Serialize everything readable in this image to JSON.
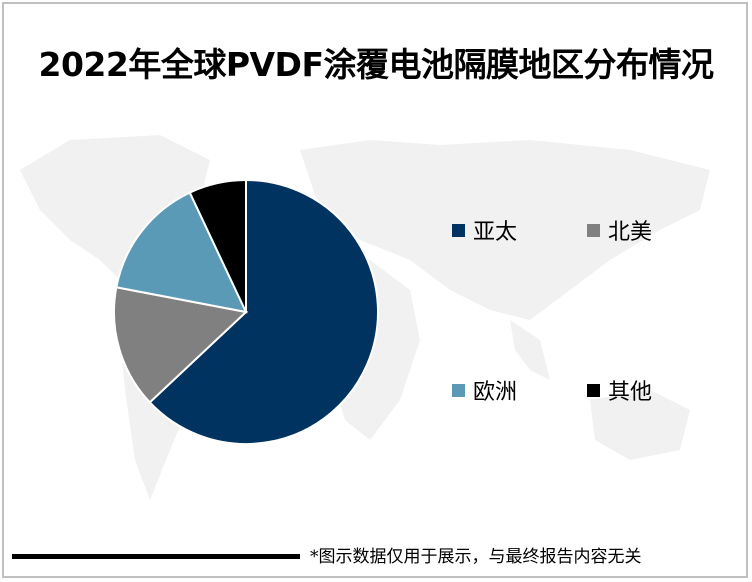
{
  "title": "2022年全球PVDF涂覆电池隔膜地区分布情况",
  "footer": {
    "note": "*图示数据仅用于展示，与最终报告内容无关"
  },
  "legend": [
    {
      "label": "亚太",
      "color": "#003360"
    },
    {
      "label": "北美",
      "color": "#808080"
    },
    {
      "label": "欧洲",
      "color": "#5a9ab7"
    },
    {
      "label": "其他",
      "color": "#000000"
    }
  ],
  "chart_data": {
    "type": "pie",
    "title": "2022年全球PVDF涂覆电池隔膜地区分布情况",
    "categories": [
      "亚太",
      "北美",
      "欧洲",
      "其他"
    ],
    "values": [
      63,
      15,
      15,
      7
    ],
    "unit": "%",
    "colors": [
      "#003360",
      "#808080",
      "#5a9ab7",
      "#000000"
    ],
    "start_angle": "12 o'clock, clockwise",
    "legend_position": "right",
    "data_labels": false
  }
}
